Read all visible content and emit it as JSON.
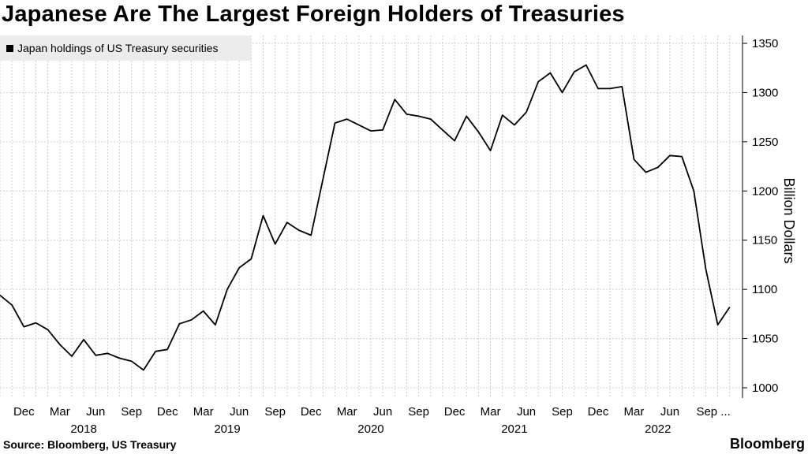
{
  "title": "Japanese Are The Largest Foreign Holders of Treasuries",
  "source": "Source: Bloomberg, US Treasury",
  "logo": "Bloomberg",
  "chart_data": {
    "type": "line",
    "title": "Japanese Are The Largest Foreign Holders of Treasuries",
    "ylabel": "Billion Dollars",
    "xlabel": "",
    "legend_position": "top-left",
    "grid": true,
    "y_axis_side": "right",
    "ylim": [
      1000,
      1350
    ],
    "yticks": [
      1000,
      1050,
      1100,
      1150,
      1200,
      1250,
      1300,
      1350
    ],
    "x_start": "2017-10",
    "x_end": "2022-11",
    "x_tick_labels": [
      {
        "month": "2017-12",
        "label": "Dec"
      },
      {
        "month": "2018-03",
        "label": "Mar"
      },
      {
        "month": "2018-06",
        "label": "Jun"
      },
      {
        "month": "2018-09",
        "label": "Sep"
      },
      {
        "month": "2018-12",
        "label": "Dec"
      },
      {
        "month": "2019-03",
        "label": "Mar"
      },
      {
        "month": "2019-06",
        "label": "Jun"
      },
      {
        "month": "2019-09",
        "label": "Sep"
      },
      {
        "month": "2019-12",
        "label": "Dec"
      },
      {
        "month": "2020-03",
        "label": "Mar"
      },
      {
        "month": "2020-06",
        "label": "Jun"
      },
      {
        "month": "2020-09",
        "label": "Sep"
      },
      {
        "month": "2020-12",
        "label": "Dec"
      },
      {
        "month": "2021-03",
        "label": "Mar"
      },
      {
        "month": "2021-06",
        "label": "Jun"
      },
      {
        "month": "2021-09",
        "label": "Sep"
      },
      {
        "month": "2021-12",
        "label": "Dec"
      },
      {
        "month": "2022-03",
        "label": "Mar"
      },
      {
        "month": "2022-06",
        "label": "Jun"
      },
      {
        "month": "2022-09",
        "label": "Sep ..."
      }
    ],
    "year_labels": [
      {
        "month": "2018-05",
        "label": "2018"
      },
      {
        "month": "2019-05",
        "label": "2019"
      },
      {
        "month": "2020-05",
        "label": "2020"
      },
      {
        "month": "2021-05",
        "label": "2021"
      },
      {
        "month": "2022-05",
        "label": "2022"
      }
    ],
    "series": [
      {
        "name": "Japan holdings of US Treasury securities",
        "color": "#000000",
        "x": [
          "2017-10",
          "2017-11",
          "2017-12",
          "2018-01",
          "2018-02",
          "2018-03",
          "2018-04",
          "2018-05",
          "2018-06",
          "2018-07",
          "2018-08",
          "2018-09",
          "2018-10",
          "2018-11",
          "2018-12",
          "2019-01",
          "2019-02",
          "2019-03",
          "2019-04",
          "2019-05",
          "2019-06",
          "2019-07",
          "2019-08",
          "2019-09",
          "2019-10",
          "2019-11",
          "2019-12",
          "2020-01",
          "2020-02",
          "2020-03",
          "2020-04",
          "2020-05",
          "2020-06",
          "2020-07",
          "2020-08",
          "2020-09",
          "2020-10",
          "2020-11",
          "2020-12",
          "2021-01",
          "2021-02",
          "2021-03",
          "2021-04",
          "2021-05",
          "2021-06",
          "2021-07",
          "2021-08",
          "2021-09",
          "2021-10",
          "2021-11",
          "2021-12",
          "2022-01",
          "2022-02",
          "2022-03",
          "2022-04",
          "2022-05",
          "2022-06",
          "2022-07",
          "2022-08",
          "2022-09",
          "2022-10",
          "2022-11"
        ],
        "values": [
          1094,
          1084,
          1062,
          1066,
          1059,
          1044,
          1032,
          1049,
          1033,
          1035,
          1030,
          1027,
          1018,
          1037,
          1039,
          1065,
          1069,
          1078,
          1064,
          1100,
          1122,
          1131,
          1175,
          1146,
          1168,
          1160,
          1155,
          1212,
          1269,
          1273,
          1267,
          1261,
          1262,
          1293,
          1278,
          1276,
          1273,
          1262,
          1251,
          1276,
          1260,
          1241,
          1277,
          1267,
          1280,
          1311,
          1320,
          1300,
          1321,
          1328,
          1304,
          1304,
          1306,
          1232,
          1219,
          1224,
          1236,
          1235,
          1200,
          1121,
          1064,
          1082
        ]
      }
    ]
  }
}
